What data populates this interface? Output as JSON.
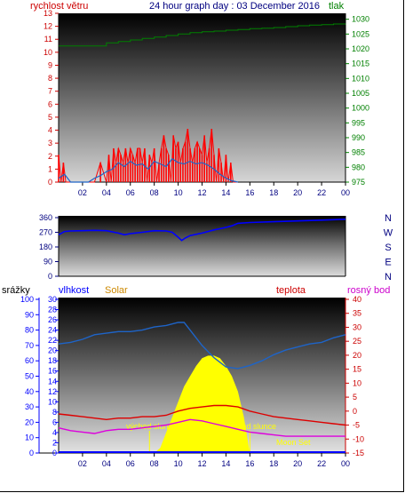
{
  "chart_data": [
    {
      "type": "line",
      "title": "24 hour graph day : 03 December 2016",
      "x_ticks": [
        "02",
        "04",
        "06",
        "08",
        "10",
        "12",
        "14",
        "16",
        "18",
        "20",
        "22",
        "00"
      ],
      "left_axis": {
        "label": "rychlost větru",
        "color": "#cc0000",
        "ylim": [
          0,
          13
        ],
        "ticks": [
          "0",
          "1",
          "2",
          "3",
          "4",
          "5",
          "6",
          "7",
          "8",
          "9",
          "10",
          "11",
          "12",
          "13"
        ]
      },
      "right_axis": {
        "label": "tlak",
        "color": "#008000",
        "ylim": [
          975,
          1032
        ],
        "ticks": [
          "975",
          "980",
          "985",
          "990",
          "995",
          "1000",
          "1005",
          "1010",
          "1015",
          "1020",
          "1025",
          "1030"
        ]
      },
      "series": [
        {
          "axis": "right",
          "color": "#008000",
          "x": [
            0.0,
            3.0,
            4.0,
            5.0,
            6.0,
            7.0,
            8.0,
            9.0,
            10.0,
            11.0,
            12.0,
            13.0,
            14.0,
            15.0,
            16.0,
            17.0,
            18.0,
            19.0,
            20.0,
            21.0,
            22.0,
            23.0,
            24.0
          ],
          "y": [
            1021,
            1021,
            1022,
            1022.5,
            1023,
            1023.5,
            1024,
            1024.5,
            1025,
            1025.5,
            1025.8,
            1026,
            1026.3,
            1026.5,
            1026.8,
            1027,
            1027.2,
            1027.5,
            1027.8,
            1028,
            1028.2,
            1028.4,
            1028.5
          ]
        },
        {
          "axis": "left",
          "color": "#ff0000",
          "x": [
            0.0,
            0.2,
            0.4,
            0.6,
            0.8,
            1.0,
            2.5,
            3.0,
            3.5,
            4.0,
            4.2,
            4.4,
            4.6,
            4.8,
            5.0,
            5.2,
            5.4,
            5.6,
            5.8,
            6.0,
            6.2,
            6.4,
            6.6,
            6.8,
            7.0,
            7.2,
            7.4,
            7.6,
            7.8,
            8.0,
            8.2,
            8.4,
            8.6,
            8.8,
            9.0,
            9.2,
            9.4,
            9.6,
            9.8,
            10.0,
            10.2,
            10.4,
            10.6,
            10.8,
            11.0,
            11.2,
            11.4,
            11.6,
            11.8,
            12.0,
            12.2,
            12.4,
            12.6,
            12.8,
            13.0,
            13.2,
            13.4,
            13.6,
            13.8,
            14.0,
            14.2,
            14.4,
            14.6,
            15.0
          ],
          "y": [
            2.1,
            0,
            1.5,
            0,
            0,
            0,
            0,
            0,
            1.5,
            0,
            2.1,
            0,
            2.6,
            1.5,
            2.6,
            2.1,
            1.5,
            2.6,
            1.5,
            2.6,
            2.1,
            1.5,
            2.6,
            2.6,
            1.5,
            2.6,
            0,
            2.1,
            1.5,
            2.6,
            0,
            1.5,
            2.6,
            3.6,
            2.6,
            2.1,
            0,
            3.6,
            2.6,
            3.1,
            1.5,
            2.6,
            3.1,
            4.1,
            2.6,
            1.5,
            2.6,
            3.1,
            2.6,
            2.1,
            3.6,
            1.5,
            2.6,
            4.1,
            2.1,
            0,
            2.6,
            1.5,
            0,
            2.1,
            0,
            1.5,
            0,
            0
          ]
        },
        {
          "axis": "left",
          "color": "#1e64c8",
          "x": [
            0.0,
            0.5,
            1.0,
            2.5,
            3.0,
            3.5,
            4.0,
            4.5,
            5.0,
            5.5,
            6.0,
            6.5,
            7.0,
            7.5,
            8.0,
            8.5,
            9.0,
            9.5,
            10.0,
            10.5,
            11.0,
            11.5,
            12.0,
            12.5,
            13.0,
            13.5,
            14.0,
            14.5,
            15.0
          ],
          "y": [
            0.3,
            0.6,
            0,
            0,
            0.3,
            0.5,
            0.8,
            1.0,
            1.5,
            1.2,
            1.6,
            1.3,
            1.4,
            1.0,
            1.6,
            1.4,
            1.2,
            1.8,
            1.5,
            1.4,
            1.6,
            1.4,
            1.5,
            1.3,
            1.0,
            0.6,
            0.3,
            0.1,
            0
          ]
        }
      ]
    },
    {
      "type": "line",
      "title": "",
      "x_ticks": [],
      "left_axis": {
        "label": "",
        "color": "#000080",
        "ylim": [
          0,
          360
        ],
        "ticks": [
          "0",
          "90",
          "180",
          "270",
          "360"
        ]
      },
      "right_axis": {
        "label": "",
        "color": "#000080",
        "ticks": [
          "N",
          "W",
          "S",
          "E",
          "N"
        ]
      },
      "series": [
        {
          "axis": "left",
          "color": "#0000ff",
          "x": [
            0.0,
            0.5,
            1.0,
            2.0,
            3.0,
            4.0,
            5.0,
            5.5,
            6.0,
            7.0,
            8.0,
            9.0,
            9.5,
            10.0,
            10.3,
            10.6,
            11.0,
            12.0,
            13.0,
            14.0,
            14.5,
            15.0,
            16.0,
            18.0,
            20.0,
            22.0,
            24.0
          ],
          "y": [
            255,
            275,
            278,
            280,
            282,
            280,
            265,
            255,
            262,
            270,
            280,
            278,
            270,
            240,
            220,
            235,
            250,
            265,
            285,
            300,
            310,
            325,
            330,
            335,
            340,
            345,
            350
          ]
        }
      ]
    },
    {
      "type": "line",
      "title": "",
      "x_ticks": [
        "02",
        "04",
        "06",
        "08",
        "10",
        "12",
        "14",
        "16",
        "18",
        "20",
        "22",
        "00"
      ],
      "left_axes": [
        {
          "label": "srážky",
          "color": "#0000ff",
          "ylim": [
            0,
            100
          ],
          "ticks": [
            "0",
            "10",
            "20",
            "30",
            "40",
            "50",
            "60",
            "70",
            "80",
            "90",
            "100"
          ]
        },
        {
          "label": "vlhkost",
          "color": "#0000ff",
          "ylim": [
            0,
            30
          ],
          "ticks": [
            "0",
            "2",
            "4",
            "6",
            "8",
            "10",
            "12",
            "14",
            "16",
            "18",
            "20",
            "22",
            "24",
            "26",
            "28",
            "30"
          ]
        },
        {
          "label": "Solar",
          "color": "#cc8800"
        }
      ],
      "right_axes": [
        {
          "label": "teplota",
          "color": "#cc0000",
          "ylim": [
            -15,
            40
          ],
          "ticks": [
            "-15",
            "-10",
            "-5",
            "0",
            "5",
            "10",
            "15",
            "20",
            "25",
            "30",
            "35",
            "40"
          ]
        },
        {
          "label": "rosný bod",
          "color": "#cc00cc"
        }
      ],
      "annotations": [
        "východ slunce",
        "západ slunce",
        "Moon Rise",
        "Moon Set"
      ],
      "series": [
        {
          "axis": "srážky",
          "color": "#1e64c8",
          "x": [
            0,
            1,
            2,
            3,
            4,
            5,
            6,
            7,
            8,
            9,
            10,
            10.5,
            11,
            12,
            13,
            14,
            15,
            16,
            17,
            18,
            19,
            20,
            21,
            22,
            23,
            24
          ],
          "y": [
            71,
            72,
            74,
            77,
            78,
            79,
            79,
            80,
            82,
            83,
            85,
            85,
            80,
            70,
            62,
            56,
            55,
            57,
            60,
            64,
            67,
            69,
            71,
            72,
            75,
            77
          ]
        },
        {
          "axis": "teplota",
          "color": "#dd0000",
          "x": [
            0,
            1,
            2,
            3,
            4,
            5,
            6,
            7,
            8,
            9,
            10,
            11,
            12,
            13,
            14,
            15,
            16,
            17,
            18,
            19,
            20,
            21,
            22,
            23,
            24
          ],
          "y": [
            -1,
            -1.5,
            -2,
            -2.5,
            -3,
            -2.5,
            -2.5,
            -2,
            -2,
            -1.5,
            0,
            1,
            1.5,
            2,
            2,
            1.5,
            0,
            -1,
            -2,
            -2.5,
            -3,
            -3.5,
            -4,
            -4.5,
            -5
          ]
        },
        {
          "axis": "teplota",
          "color": "#dd00dd",
          "x": [
            0,
            1,
            2,
            3,
            4,
            5,
            6,
            7,
            8,
            9,
            10,
            11,
            12,
            13,
            14,
            15,
            16,
            17,
            18,
            19,
            20,
            21,
            22,
            23,
            24
          ],
          "y": [
            -6,
            -7,
            -7.5,
            -8,
            -7,
            -6.5,
            -6.5,
            -6,
            -5.5,
            -5,
            -4,
            -3,
            -3.5,
            -4.5,
            -5.5,
            -6.5,
            -7.5,
            -8,
            -8.5,
            -9,
            -9,
            -9,
            -9,
            -9,
            -9
          ]
        },
        {
          "axis": "Solar",
          "color": "#ffff00",
          "type": "area",
          "x": [
            8.0,
            8.5,
            9.0,
            9.5,
            10.0,
            10.5,
            11.0,
            11.5,
            12.0,
            12.5,
            13.0,
            13.5,
            14.0,
            14.5,
            15.0,
            15.5,
            16.0
          ],
          "y": [
            0,
            1,
            4,
            7,
            10,
            13,
            15,
            17,
            18.5,
            19,
            19,
            18.5,
            17,
            15,
            12,
            7,
            0
          ]
        }
      ]
    }
  ]
}
